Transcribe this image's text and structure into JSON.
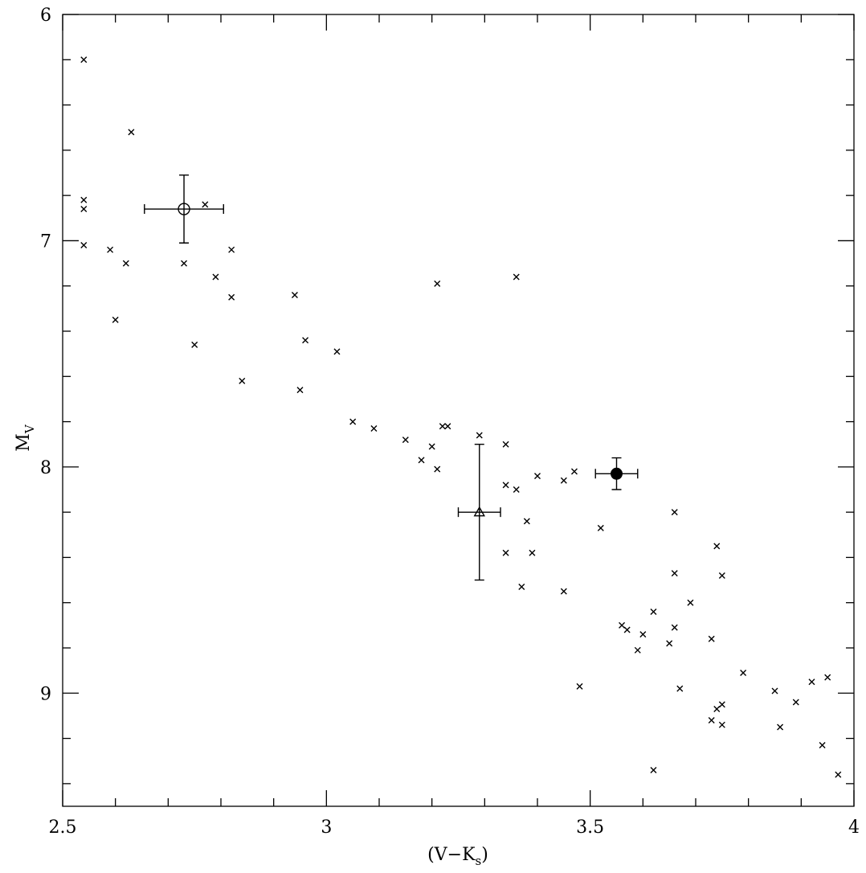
{
  "chart_data": {
    "type": "scatter",
    "xlabel": "(V−K",
    "xlabel_sub": "s",
    "xlabel_close": ")",
    "ylabel": "M",
    "ylabel_sub": "V",
    "xlim": [
      2.5,
      4.0
    ],
    "ylim": [
      6.0,
      9.5
    ],
    "y_inverted": true,
    "x_major_ticks": [
      2.5,
      3.0,
      3.5,
      4.0
    ],
    "x_minor_ticks": [
      2.6,
      2.7,
      2.8,
      2.9,
      3.1,
      3.2,
      3.3,
      3.4,
      3.6,
      3.7,
      3.8,
      3.9
    ],
    "x_tick_labels": [
      "2.5",
      "3",
      "3.5",
      "4"
    ],
    "y_major_ticks": [
      6,
      7,
      8,
      9
    ],
    "y_minor_ticks": [
      6.2,
      6.4,
      6.6,
      6.8,
      7.2,
      7.4,
      7.6,
      7.8,
      8.2,
      8.4,
      8.6,
      8.8,
      9.2,
      9.4
    ],
    "y_tick_labels": [
      "6",
      "7",
      "8",
      "9"
    ],
    "grid": false,
    "legend": "none",
    "series": [
      {
        "marker": "cross",
        "points": [
          [
            2.54,
            6.2
          ],
          [
            2.63,
            6.52
          ],
          [
            2.54,
            6.82
          ],
          [
            2.54,
            6.86
          ],
          [
            2.77,
            6.84
          ],
          [
            2.54,
            7.02
          ],
          [
            2.59,
            7.04
          ],
          [
            2.62,
            7.1
          ],
          [
            2.73,
            7.1
          ],
          [
            2.82,
            7.04
          ],
          [
            2.79,
            7.16
          ],
          [
            2.82,
            7.25
          ],
          [
            2.6,
            7.35
          ],
          [
            2.75,
            7.46
          ],
          [
            2.84,
            7.62
          ],
          [
            2.94,
            7.24
          ],
          [
            2.96,
            7.44
          ],
          [
            3.02,
            7.49
          ],
          [
            2.95,
            7.66
          ],
          [
            3.21,
            7.19
          ],
          [
            3.36,
            7.16
          ],
          [
            3.05,
            7.8
          ],
          [
            3.09,
            7.83
          ],
          [
            3.15,
            7.88
          ],
          [
            3.18,
            7.97
          ],
          [
            3.2,
            7.91
          ],
          [
            3.22,
            7.82
          ],
          [
            3.23,
            7.82
          ],
          [
            3.21,
            8.01
          ],
          [
            3.29,
            7.86
          ],
          [
            3.34,
            7.9
          ],
          [
            3.34,
            8.08
          ],
          [
            3.36,
            8.1
          ],
          [
            3.4,
            8.04
          ],
          [
            3.45,
            8.06
          ],
          [
            3.47,
            8.02
          ],
          [
            3.38,
            8.24
          ],
          [
            3.34,
            8.38
          ],
          [
            3.39,
            8.38
          ],
          [
            3.37,
            8.53
          ],
          [
            3.45,
            8.55
          ],
          [
            3.52,
            8.27
          ],
          [
            3.48,
            8.97
          ],
          [
            3.66,
            8.2
          ],
          [
            3.74,
            8.35
          ],
          [
            3.66,
            8.47
          ],
          [
            3.75,
            8.48
          ],
          [
            3.69,
            8.6
          ],
          [
            3.62,
            8.64
          ],
          [
            3.56,
            8.7
          ],
          [
            3.57,
            8.72
          ],
          [
            3.66,
            8.71
          ],
          [
            3.6,
            8.74
          ],
          [
            3.73,
            8.76
          ],
          [
            3.65,
            8.78
          ],
          [
            3.59,
            8.81
          ],
          [
            3.79,
            8.91
          ],
          [
            3.67,
            8.98
          ],
          [
            3.85,
            8.99
          ],
          [
            3.92,
            8.95
          ],
          [
            3.95,
            8.93
          ],
          [
            3.89,
            9.04
          ],
          [
            3.75,
            9.05
          ],
          [
            3.74,
            9.07
          ],
          [
            3.73,
            9.12
          ],
          [
            3.75,
            9.14
          ],
          [
            3.86,
            9.15
          ],
          [
            3.94,
            9.23
          ],
          [
            3.62,
            9.34
          ],
          [
            3.97,
            9.36
          ]
        ]
      },
      {
        "marker": "open-circle",
        "points": [
          [
            2.73,
            6.86
          ]
        ],
        "x_err": [
          0.075
        ],
        "y_err": [
          0.15
        ]
      },
      {
        "marker": "open-triangle",
        "points": [
          [
            3.29,
            8.2
          ]
        ],
        "x_err": [
          0.04
        ],
        "y_err": [
          0.3
        ]
      },
      {
        "marker": "filled-circle",
        "points": [
          [
            3.55,
            8.03
          ]
        ],
        "x_err": [
          0.04
        ],
        "y_err": [
          0.07
        ]
      }
    ]
  }
}
